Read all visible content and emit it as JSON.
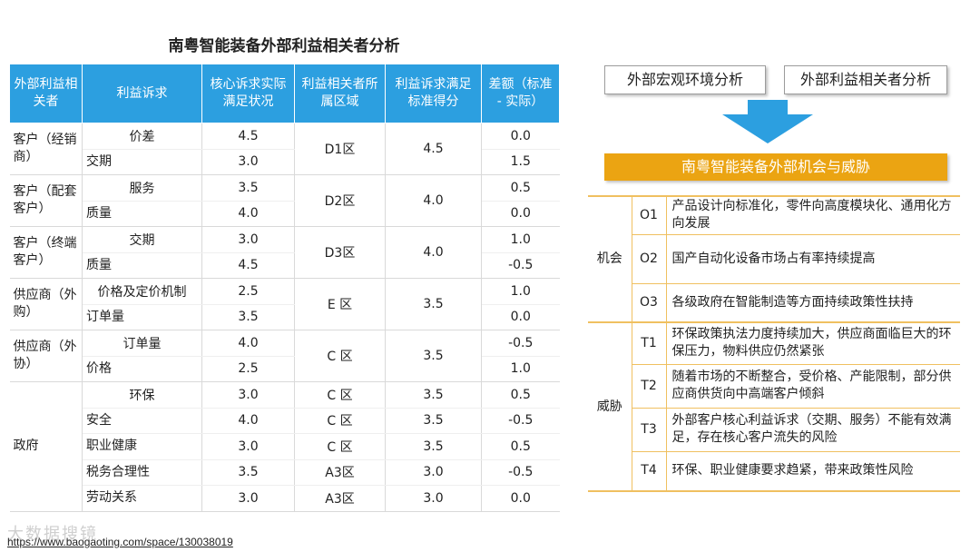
{
  "left": {
    "title": "南粤智能装备外部利益相关者分析",
    "headers": [
      "外部利益相关者",
      "利益诉求",
      "核心诉求实际满足状况",
      "利益相关者所属区域",
      "利益诉求满足标准得分",
      "差额（标准 - 实际）"
    ],
    "groups": [
      {
        "stakeholder": "客户（经销商）",
        "region": "D1区",
        "standard": "4.5",
        "rows": [
          {
            "demand": "价差",
            "actual": "4.5",
            "diff": "0.0"
          },
          {
            "demand": "交期",
            "actual": "3.0",
            "diff": "1.5"
          }
        ]
      },
      {
        "stakeholder": "客户（配套客户）",
        "region": "D2区",
        "standard": "4.0",
        "rows": [
          {
            "demand": "服务",
            "actual": "3.5",
            "diff": "0.5"
          },
          {
            "demand": "质量",
            "actual": "4.0",
            "diff": "0.0"
          }
        ]
      },
      {
        "stakeholder": "客户（终端客户）",
        "region": "D3区",
        "standard": "4.0",
        "rows": [
          {
            "demand": "交期",
            "actual": "3.0",
            "diff": "1.0"
          },
          {
            "demand": "质量",
            "actual": "4.5",
            "diff": "-0.5"
          }
        ]
      },
      {
        "stakeholder": "供应商（外购）",
        "region": "E 区",
        "standard": "3.5",
        "rows": [
          {
            "demand": "价格及定价机制",
            "actual": "2.5",
            "diff": "1.0"
          },
          {
            "demand": "订单量",
            "actual": "3.5",
            "diff": "0.0"
          }
        ]
      },
      {
        "stakeholder": "供应商（外协）",
        "region": "C 区",
        "standard": "3.5",
        "rows": [
          {
            "demand": "订单量",
            "actual": "4.0",
            "diff": "-0.5"
          },
          {
            "demand": "价格",
            "actual": "2.5",
            "diff": "1.0"
          }
        ]
      }
    ],
    "government": {
      "stakeholder": "政府",
      "rows": [
        {
          "demand": "环保",
          "actual": "3.0",
          "region": "C 区",
          "standard": "3.5",
          "diff": "0.5"
        },
        {
          "demand": "安全",
          "actual": "4.0",
          "region": "C 区",
          "standard": "3.5",
          "diff": "-0.5"
        },
        {
          "demand": "职业健康",
          "actual": "3.0",
          "region": "C 区",
          "standard": "3.5",
          "diff": "0.5"
        },
        {
          "demand": "税务合理性",
          "actual": "3.5",
          "region": "A3区",
          "standard": "3.0",
          "diff": "-0.5"
        },
        {
          "demand": "劳动关系",
          "actual": "3.0",
          "region": "A3区",
          "standard": "3.0",
          "diff": "0.0"
        }
      ]
    },
    "watermark": "大数据搜镜",
    "url": "https://www.baogaoting.com/space/130038019"
  },
  "right": {
    "box1": "外部宏观环境分析",
    "box2": "外部利益相关者分析",
    "banner": "南粤智能装备外部机会与威胁",
    "opportunity_label": "机会",
    "threat_label": "威胁",
    "opportunities": [
      {
        "code": "O1",
        "text": "产品设计向标准化，零件向高度模块化、通用化方向发展"
      },
      {
        "code": "O2",
        "text": "国产自动化设备市场占有率持续提高"
      },
      {
        "code": "O3",
        "text": "各级政府在智能制造等方面持续政策性扶持"
      }
    ],
    "threats": [
      {
        "code": "T1",
        "text": "环保政策执法力度持续加大，供应商面临巨大的环保压力，物料供应仍然紧张"
      },
      {
        "code": "T2",
        "text": "随着市场的不断整合，受价格、产能限制，部分供应商供货向中高端客户倾斜"
      },
      {
        "code": "T3",
        "text": "外部客户核心利益诉求（交期、服务）不能有效满足，存在核心客户流失的风险"
      },
      {
        "code": "T4",
        "text": "环保、职业健康要求趋紧，带来政策性风险"
      }
    ],
    "arrow_color": "#2c9fe0",
    "accent": "#eba412"
  }
}
